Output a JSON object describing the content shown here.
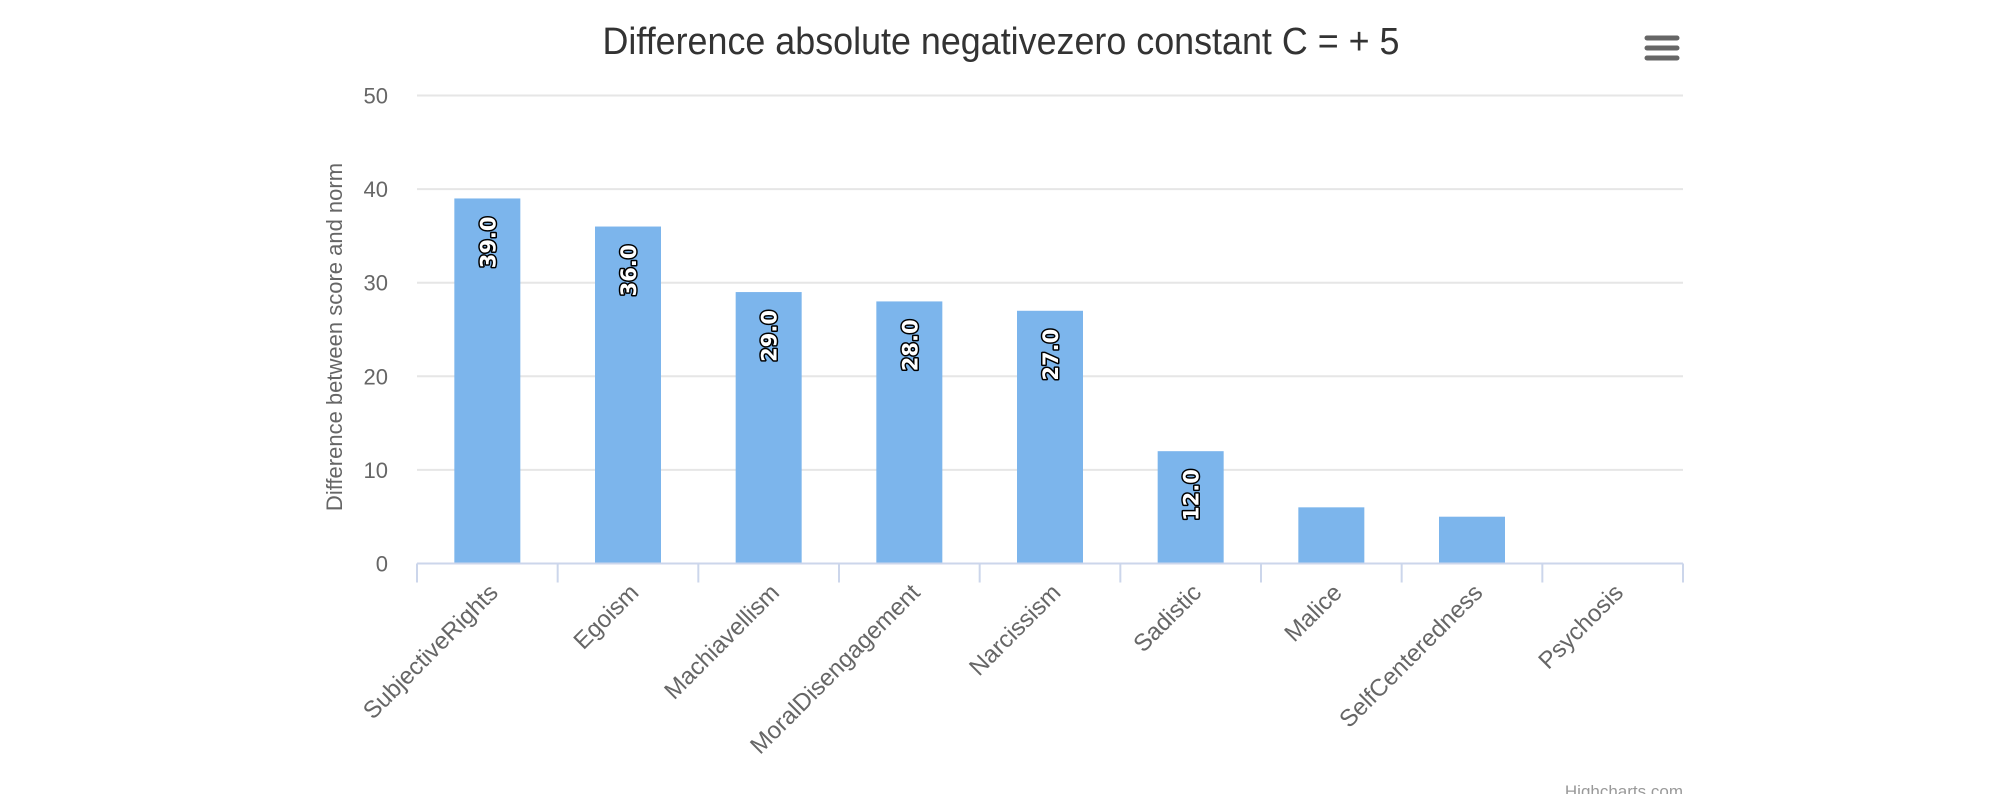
{
  "chart_data": {
    "type": "bar",
    "orientation": "vertical",
    "title": "Difference absolute negativezero constant C = + 5",
    "xlabel": "",
    "ylabel": "Difference between score and norm",
    "categories": [
      "SubjectiveRights",
      "Egoism",
      "Machiavellism",
      "MoralDisengagement",
      "Narcissism",
      "Sadistic",
      "Malice",
      "SelfCenteredness",
      "Psychosis"
    ],
    "values": [
      39,
      36,
      29,
      28,
      27,
      12,
      6,
      5,
      0
    ],
    "data_labels": [
      "39.0",
      "36.0",
      "29.0",
      "28.0",
      "27.0",
      "12.0",
      "",
      "",
      ""
    ],
    "ylim": [
      0,
      50
    ],
    "yticks": [
      0,
      10,
      20,
      30,
      40,
      50
    ],
    "grid": true,
    "legend": "none",
    "colors": {
      "bar": "#7cb5ec",
      "grid": "#e6e6e6",
      "axis": "#ccd6eb",
      "text": "#666666",
      "title": "#333333"
    }
  },
  "menu": {
    "icon": "hamburger-menu-icon"
  },
  "credits": "Highcharts.com"
}
